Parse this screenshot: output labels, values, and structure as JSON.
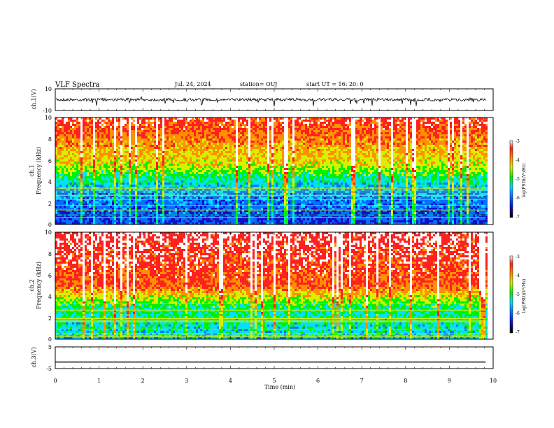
{
  "header": {
    "title": "VLF Spectra",
    "date": "Jul. 24, 2024",
    "station": "station= OUJ",
    "start": "start  UT =   16: 20: 0"
  },
  "colors": {
    "colormap": [
      "#000000",
      "#1010c8",
      "#0070ff",
      "#00e0ff",
      "#00f000",
      "#d8f000",
      "#ff9000",
      "#ff2020",
      "#ffffff"
    ]
  },
  "chart_data": [
    {
      "type": "line",
      "panel": "ch1-waveform",
      "ylabel": "ch.1(V)",
      "ylim": [
        -10,
        10
      ],
      "yticks": [
        "10",
        "-10"
      ],
      "xlim": [
        0,
        10
      ],
      "baseline": 0
    },
    {
      "type": "heatmap",
      "panel": "ch1-spectrogram",
      "ylabel_line1": "ch.1",
      "ylabel_line2": "Frequency  (kHz)",
      "ylim": [
        0,
        10
      ],
      "yticks": [
        "0",
        "2",
        "4",
        "6",
        "8",
        "10"
      ],
      "xlim": [
        0,
        10
      ],
      "data_end_min": 9.83,
      "colorbar": {
        "label": "log(PSD)(V²/Hz)",
        "ticks": [
          "-3",
          "-4",
          "-5",
          "-6",
          "-7"
        ],
        "range": [
          -7,
          -3
        ]
      }
    },
    {
      "type": "heatmap",
      "panel": "ch2-spectrogram",
      "ylabel_line1": "ch.2",
      "ylabel_line2": "Frequency  (kHz)",
      "ylim": [
        0,
        10
      ],
      "yticks": [
        "0",
        "2",
        "4",
        "6",
        "8",
        "10"
      ],
      "xlim": [
        0,
        10
      ],
      "data_end_min": 9.83,
      "colorbar": {
        "label": "log(PSD)(V²/Hz)",
        "ticks": [
          "-3",
          "-4",
          "-5",
          "-6",
          "-7"
        ],
        "range": [
          -7,
          -3
        ]
      }
    },
    {
      "type": "line",
      "panel": "ch3-waveform",
      "ylabel": "ch.3(V)",
      "ylim": [
        -5,
        5
      ],
      "yticks": [
        "5",
        "-5"
      ],
      "xlim": [
        0,
        10
      ],
      "xlabel": "Time  (min)",
      "xticks": [
        "0",
        "1",
        "2",
        "3",
        "4",
        "5",
        "6",
        "7",
        "8",
        "9",
        "10"
      ],
      "x": [
        0,
        9.83
      ],
      "y": [
        -2,
        -2
      ]
    }
  ]
}
